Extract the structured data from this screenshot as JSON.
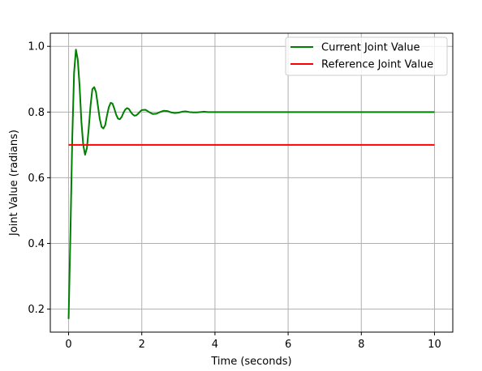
{
  "chart_data": {
    "type": "line",
    "title": "",
    "xlabel": "Time (seconds)",
    "ylabel": "Joint Value (radians)",
    "xlim": [
      -0.5,
      10.5
    ],
    "ylim": [
      0.13,
      1.04
    ],
    "xticks": [
      0,
      2,
      4,
      6,
      8,
      10
    ],
    "yticks": [
      0.2,
      0.4,
      0.6,
      0.8,
      1.0
    ],
    "xtick_labels": [
      "0",
      "2",
      "4",
      "6",
      "8",
      "10"
    ],
    "ytick_labels": [
      "0.2",
      "0.4",
      "0.6",
      "0.8",
      "1.0"
    ],
    "grid": true,
    "legend_position": "top-right",
    "series": [
      {
        "name": "Current Joint Value",
        "color": "#008000",
        "x": [
          0,
          0.05,
          0.1,
          0.15,
          0.2,
          0.25,
          0.3,
          0.35,
          0.4,
          0.45,
          0.5,
          0.55,
          0.6,
          0.65,
          0.7,
          0.75,
          0.8,
          0.85,
          0.9,
          0.95,
          1.0,
          1.05,
          1.1,
          1.15,
          1.2,
          1.25,
          1.3,
          1.35,
          1.4,
          1.45,
          1.5,
          1.55,
          1.6,
          1.65,
          1.7,
          1.75,
          1.8,
          1.85,
          1.9,
          1.95,
          2.0,
          2.1,
          2.2,
          2.3,
          2.4,
          2.5,
          2.6,
          2.7,
          2.8,
          2.9,
          3.0,
          3.1,
          3.2,
          3.3,
          3.4,
          3.5,
          3.6,
          3.7,
          3.8,
          4.0,
          4.2,
          4.5,
          5.0,
          6.0,
          7.0,
          8.0,
          9.0,
          10.0
        ],
        "y": [
          0.17,
          0.43,
          0.72,
          0.92,
          0.99,
          0.96,
          0.88,
          0.77,
          0.7,
          0.67,
          0.69,
          0.75,
          0.82,
          0.87,
          0.876,
          0.86,
          0.82,
          0.78,
          0.755,
          0.75,
          0.76,
          0.79,
          0.815,
          0.828,
          0.826,
          0.81,
          0.792,
          0.78,
          0.778,
          0.785,
          0.798,
          0.808,
          0.812,
          0.809,
          0.8,
          0.793,
          0.789,
          0.79,
          0.795,
          0.801,
          0.806,
          0.807,
          0.8,
          0.794,
          0.795,
          0.8,
          0.804,
          0.803,
          0.799,
          0.797,
          0.798,
          0.801,
          0.802,
          0.8,
          0.799,
          0.799,
          0.8,
          0.801,
          0.8,
          0.8,
          0.8,
          0.8,
          0.8,
          0.8,
          0.8,
          0.8,
          0.8,
          0.8
        ]
      },
      {
        "name": "Reference Joint Value",
        "color": "#ff0000",
        "x": [
          0,
          10
        ],
        "y": [
          0.7,
          0.7
        ]
      }
    ]
  }
}
